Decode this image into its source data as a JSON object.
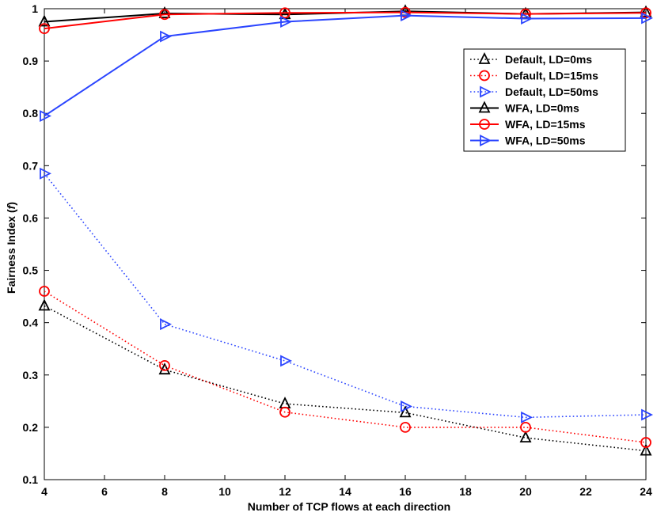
{
  "chart_data": {
    "type": "line",
    "title": "",
    "xlabel": "Number of TCP flows at each direction",
    "ylabel_prefix": "Fairness Index (",
    "ylabel_var": "f",
    "ylabel_suffix": ")",
    "xlim": [
      4,
      24
    ],
    "ylim": [
      0.1,
      1.0
    ],
    "xticks": [
      4,
      6,
      8,
      10,
      12,
      14,
      16,
      18,
      20,
      22,
      24
    ],
    "yticks": [
      0.1,
      0.2,
      0.3,
      0.4,
      0.5,
      0.6,
      0.7,
      0.8,
      0.9,
      1.0
    ],
    "ytick_labels": [
      "0.1",
      "0.2",
      "0.3",
      "0.4",
      "0.5",
      "0.6",
      "0.7",
      "0.8",
      "0.9",
      "1"
    ],
    "grid": false,
    "legend_position": "upper-right",
    "x": [
      4,
      8,
      12,
      16,
      20,
      24
    ],
    "series": [
      {
        "name": "Default, LD=0ms",
        "values": [
          0.432,
          0.31,
          0.245,
          0.228,
          0.18,
          0.155
        ],
        "color": "#000000",
        "style": "dotted",
        "marker": "triangle-up"
      },
      {
        "name": "Default, LD=15ms",
        "values": [
          0.46,
          0.318,
          0.229,
          0.2,
          0.2,
          0.171
        ],
        "color": "#ff0000",
        "style": "dotted",
        "marker": "circle"
      },
      {
        "name": "Default, LD=50ms",
        "values": [
          0.685,
          0.397,
          0.327,
          0.24,
          0.219,
          0.224
        ],
        "color": "#2b45ff",
        "style": "dotted",
        "marker": "triangle-right"
      },
      {
        "name": "WFA, LD=0ms",
        "values": [
          0.975,
          0.991,
          0.989,
          0.995,
          0.99,
          0.993
        ],
        "color": "#000000",
        "style": "solid",
        "marker": "triangle-up"
      },
      {
        "name": "WFA, LD=15ms",
        "values": [
          0.962,
          0.989,
          0.992,
          0.993,
          0.99,
          0.992
        ],
        "color": "#ff0000",
        "style": "solid",
        "marker": "circle"
      },
      {
        "name": "WFA, LD=50ms",
        "values": [
          0.795,
          0.947,
          0.975,
          0.987,
          0.981,
          0.982
        ],
        "color": "#2b45ff",
        "style": "solid",
        "marker": "triangle-right"
      }
    ]
  }
}
